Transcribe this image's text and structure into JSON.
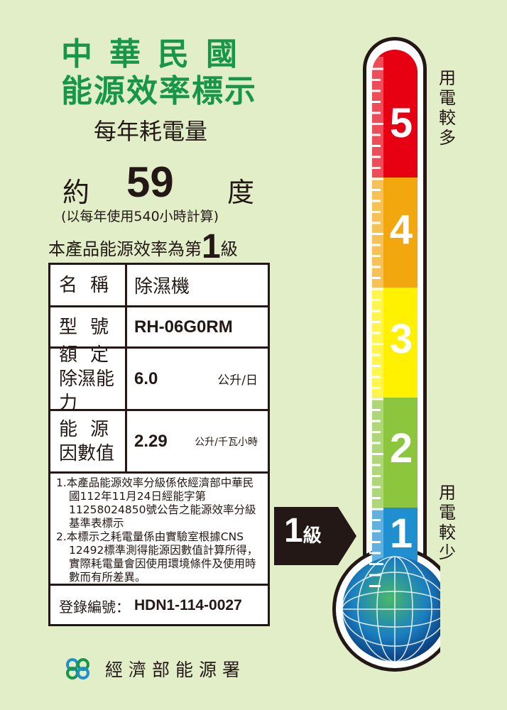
{
  "header": {
    "line1": "中華民國",
    "line2": "能源效率標示",
    "annual_label": "每年耗電量"
  },
  "usage": {
    "prefix": "約",
    "value": "59",
    "unit": "度",
    "note": "(以每年使用540小時計算)"
  },
  "grade": {
    "text_before": "本產品能源效率為第",
    "level": "1",
    "suffix": "級"
  },
  "table": {
    "name": {
      "label": "名稱",
      "value": "除濕機"
    },
    "model": {
      "label": "型號",
      "value": "RH-06G0RM"
    },
    "capacity": {
      "label1": "額定",
      "label2": "除濕能力",
      "value": "6.0",
      "unit": "公升/日"
    },
    "factor": {
      "label1": "能源",
      "label2": "因數值",
      "value": "2.29",
      "unit": "公升/千瓦小時"
    },
    "notes": [
      "1.本產品能源效率分級係依經濟部中華民國112年11月24日經能字第11258024850號公告之能源效率分級基準表標示",
      "2.本標示之耗電量係由實驗室根據CNS 12492標準測得能源因數值計算所得，實際耗電量會因使用環境條件及使用時數而有所差異。"
    ],
    "registration": {
      "label": "登錄編號：",
      "value": "HDN1-114-0027"
    }
  },
  "footer": {
    "agency": "經濟部能源署"
  },
  "thermometer": {
    "levels": [
      "5",
      "4",
      "3",
      "2",
      "1"
    ],
    "colors": {
      "5": "#e60012",
      "4": "#f3a70e",
      "3": "#fff100",
      "2": "#8cc63f",
      "1": "#1f8fd0"
    },
    "top_label": "用電較多",
    "bottom_label": "用電較少",
    "indicator": {
      "level": "1",
      "suffix": "級"
    }
  }
}
